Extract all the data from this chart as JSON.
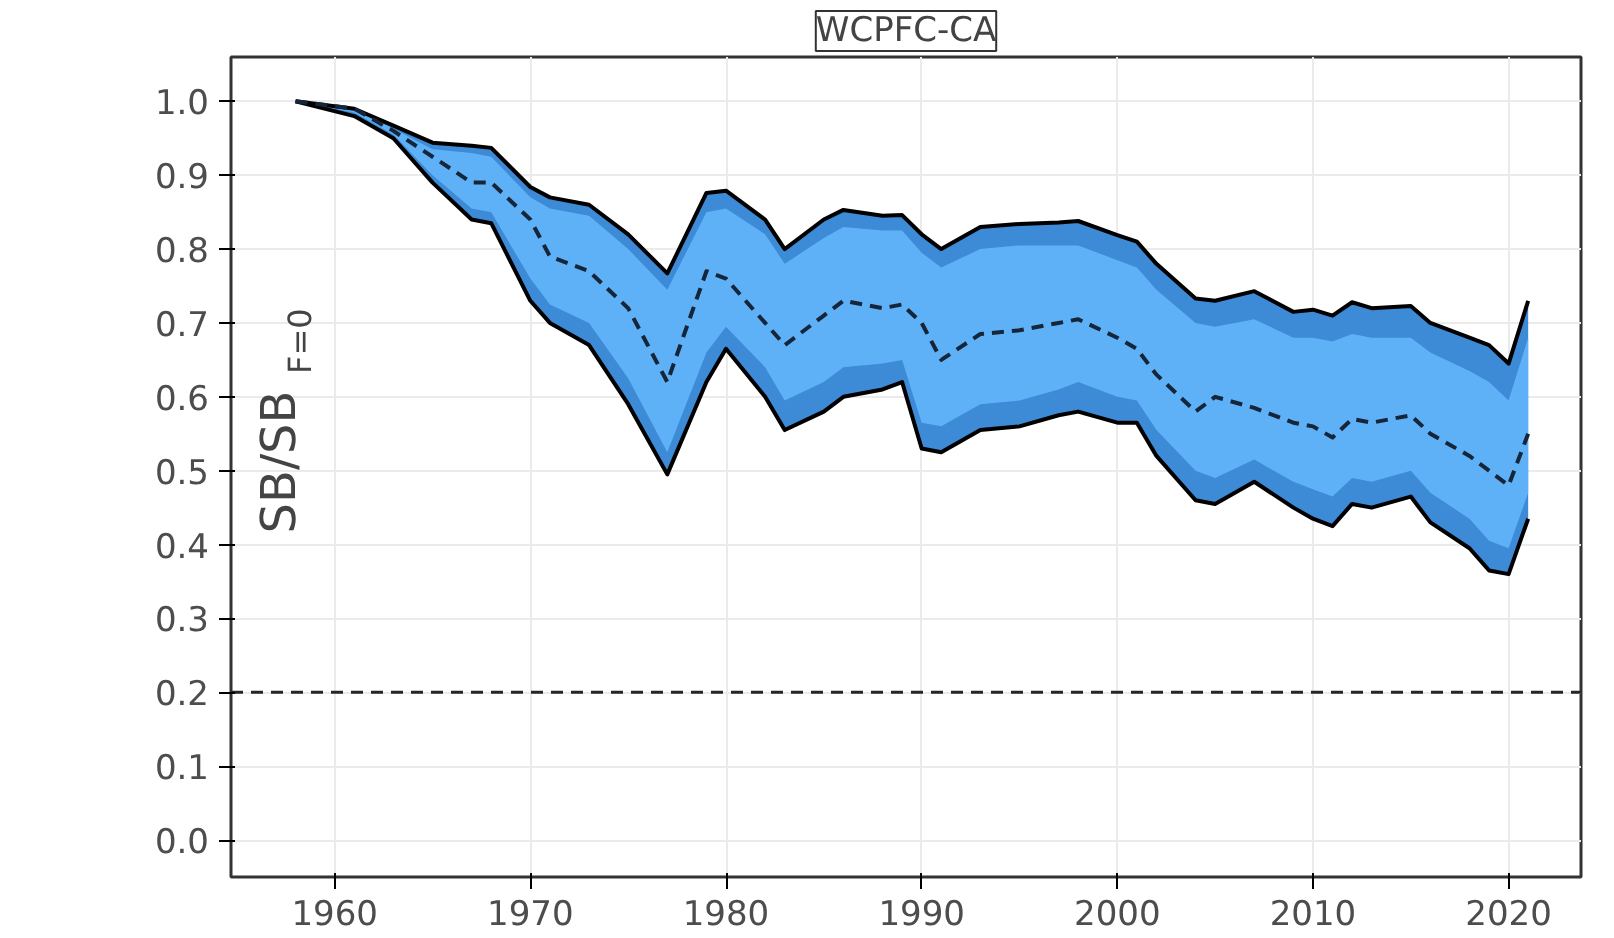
{
  "chart_data": {
    "type": "line",
    "title": "WCPFC-CA",
    "ylabel": "SB/SB$_{F=0}$",
    "x": [
      1958,
      1961,
      1963,
      1965,
      1967,
      1968,
      1970,
      1971,
      1973,
      1975,
      1977,
      1979,
      1980,
      1982,
      1983,
      1985,
      1986,
      1988,
      1989,
      1990,
      1991,
      1993,
      1995,
      1997,
      1998,
      2000,
      2001,
      2002,
      2004,
      2005,
      2007,
      2009,
      2010,
      2011,
      2012,
      2013,
      2015,
      2016,
      2018,
      2019,
      2020,
      2021
    ],
    "series": [
      {
        "color": "#3d8ad6",
        "values": [
          null,
          null,
          null,
          null,
          null,
          null,
          null,
          null,
          null,
          null,
          null,
          null,
          null,
          null,
          null,
          null,
          null,
          null,
          null,
          null,
          null,
          null,
          null,
          null,
          null,
          null,
          null,
          null,
          null,
          null,
          null,
          null,
          null,
          null,
          null,
          null,
          null,
          null,
          null,
          null,
          null,
          null
        ],
        "lower": [
          1.0,
          0.98,
          0.95,
          0.89,
          0.84,
          0.835,
          0.73,
          0.7,
          0.67,
          0.59,
          0.495,
          0.62,
          0.665,
          0.6,
          0.555,
          0.58,
          0.6,
          0.61,
          0.62,
          0.53,
          0.525,
          0.555,
          0.56,
          0.575,
          0.58,
          0.565,
          0.565,
          0.52,
          0.46,
          0.455,
          0.485,
          0.45,
          0.435,
          0.425,
          0.455,
          0.45,
          0.465,
          0.43,
          0.395,
          0.365,
          0.36,
          0.435
        ],
        "upper": [
          1.0,
          0.99,
          0.967,
          0.944,
          0.94,
          0.937,
          0.884,
          0.87,
          0.86,
          0.82,
          0.767,
          0.876,
          0.879,
          0.84,
          0.8,
          0.84,
          0.853,
          0.845,
          0.846,
          0.82,
          0.8,
          0.83,
          0.834,
          0.836,
          0.838,
          0.819,
          0.81,
          0.78,
          0.733,
          0.73,
          0.743,
          0.715,
          0.718,
          0.71,
          0.728,
          0.72,
          0.723,
          0.7,
          0.68,
          0.67,
          0.645,
          0.73
        ]
      },
      {
        "color": "#5fb1f7",
        "values": [
          null,
          null,
          null,
          null,
          null,
          null,
          null,
          null,
          null,
          null,
          null,
          null,
          null,
          null,
          null,
          null,
          null,
          null,
          null,
          null,
          null,
          null,
          null,
          null,
          null,
          null,
          null,
          null,
          null,
          null,
          null,
          null,
          null,
          null,
          null,
          null,
          null,
          null,
          null,
          null,
          null,
          null
        ],
        "lower": [
          1.0,
          0.985,
          0.955,
          0.9,
          0.855,
          0.85,
          0.76,
          0.725,
          0.7,
          0.625,
          0.525,
          0.66,
          0.695,
          0.64,
          0.595,
          0.62,
          0.64,
          0.645,
          0.65,
          0.565,
          0.56,
          0.59,
          0.595,
          0.61,
          0.62,
          0.6,
          0.595,
          0.555,
          0.5,
          0.49,
          0.515,
          0.485,
          0.475,
          0.465,
          0.49,
          0.485,
          0.5,
          0.47,
          0.435,
          0.405,
          0.395,
          0.47
        ],
        "upper": [
          1.0,
          0.99,
          0.963,
          0.935,
          0.93,
          0.925,
          0.87,
          0.855,
          0.845,
          0.8,
          0.745,
          0.85,
          0.855,
          0.82,
          0.78,
          0.815,
          0.83,
          0.825,
          0.825,
          0.795,
          0.775,
          0.8,
          0.805,
          0.805,
          0.805,
          0.785,
          0.775,
          0.745,
          0.7,
          0.695,
          0.705,
          0.68,
          0.68,
          0.675,
          0.685,
          0.68,
          0.68,
          0.66,
          0.635,
          0.62,
          0.595,
          0.68
        ]
      },
      {
        "type": "line",
        "color": "#000000",
        "values": [
          1.0,
          0.99,
          0.967,
          0.944,
          0.94,
          0.937,
          0.884,
          0.87,
          0.86,
          0.82,
          0.767,
          0.876,
          0.879,
          0.84,
          0.8,
          0.84,
          0.853,
          0.845,
          0.846,
          0.82,
          0.8,
          0.83,
          0.834,
          0.836,
          0.838,
          0.819,
          0.81,
          0.78,
          0.733,
          0.73,
          0.743,
          0.715,
          0.718,
          0.71,
          0.728,
          0.72,
          0.723,
          0.7,
          0.68,
          0.67,
          0.645,
          0.73
        ]
      },
      {
        "type": "line",
        "color": "#000000",
        "values": [
          1.0,
          0.98,
          0.95,
          0.89,
          0.84,
          0.835,
          0.73,
          0.7,
          0.67,
          0.59,
          0.495,
          0.62,
          0.665,
          0.6,
          0.555,
          0.58,
          0.6,
          0.61,
          0.62,
          0.53,
          0.525,
          0.555,
          0.56,
          0.575,
          0.58,
          0.565,
          0.565,
          0.52,
          0.46,
          0.455,
          0.485,
          0.45,
          0.435,
          0.425,
          0.455,
          0.45,
          0.465,
          0.43,
          0.395,
          0.365,
          0.36,
          0.435
        ]
      },
      {
        "color": "#16263a",
        "line_style": "dashed",
        "values": [
          1.0,
          0.99,
          0.96,
          0.925,
          0.89,
          0.89,
          0.84,
          0.79,
          0.77,
          0.72,
          0.62,
          0.77,
          0.76,
          0.7,
          0.67,
          0.71,
          0.73,
          0.72,
          0.725,
          0.7,
          0.65,
          0.685,
          0.69,
          0.7,
          0.705,
          0.68,
          0.665,
          0.63,
          0.58,
          0.6,
          0.585,
          0.565,
          0.56,
          0.545,
          0.57,
          0.565,
          0.575,
          0.55,
          0.52,
          0.5,
          0.48,
          0.55
        ]
      }
    ],
    "ref_lines": [
      {
        "axis": "y",
        "value": 0.2,
        "color": "#262626",
        "line_style": "dashed"
      }
    ],
    "xlim": [
      1954.7,
      2023.7
    ],
    "xticks": [
      1960,
      1970,
      1980,
      1990,
      2000,
      2010,
      2020
    ],
    "ylim": [
      -0.05,
      1.06
    ],
    "yticks": [
      {
        "value": 0,
        "label": "0.0"
      },
      0.1,
      0.2,
      0.3,
      0.4,
      0.5,
      0.6,
      0.7,
      0.8,
      0.9,
      {
        "value": 1,
        "label": "1.0"
      }
    ],
    "grid": true
  }
}
